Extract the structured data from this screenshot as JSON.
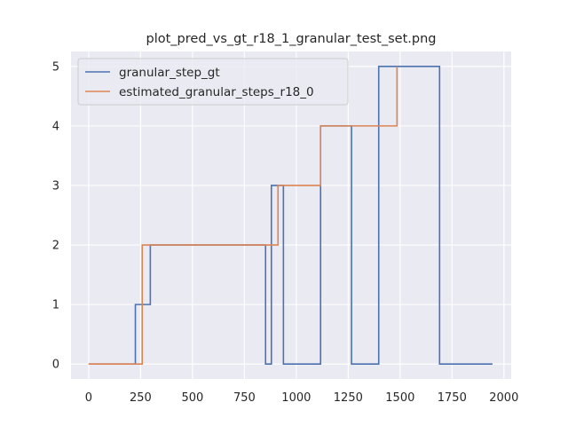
{
  "chart_data": {
    "type": "line",
    "title": "plot_pred_vs_gt_r18_1_granular_test_set.png",
    "xlabel": "",
    "ylabel": "",
    "xlim": [
      -85,
      2035
    ],
    "ylim": [
      -0.25,
      5.25
    ],
    "x_ticks": [
      "0",
      "250",
      "500",
      "750",
      "1000",
      "1250",
      "1500",
      "1750",
      "2000"
    ],
    "x_tick_values": [
      0,
      250,
      500,
      750,
      1000,
      1250,
      1500,
      1750,
      2000
    ],
    "y_ticks": [
      "0",
      "1",
      "2",
      "3",
      "4",
      "5"
    ],
    "y_tick_values": [
      0,
      1,
      2,
      3,
      4,
      5
    ],
    "grid": true,
    "legend_position": "top-left",
    "series": [
      {
        "name": "granular_step_gt",
        "color": "#4c72b0",
        "step": "post",
        "x": [
          0,
          225,
          297,
          852,
          880,
          938,
          1117,
          1266,
          1397,
          1690,
          1945
        ],
        "y": [
          0,
          1,
          2,
          0,
          3,
          0,
          4,
          0,
          5,
          0,
          0
        ]
      },
      {
        "name": "estimated_granular_steps_r18_0",
        "color": "#dd8452",
        "step": "post",
        "x": [
          0,
          258,
          912,
          1117,
          1485,
          1485
        ],
        "y": [
          0,
          2,
          3,
          4,
          5,
          5
        ]
      }
    ]
  }
}
